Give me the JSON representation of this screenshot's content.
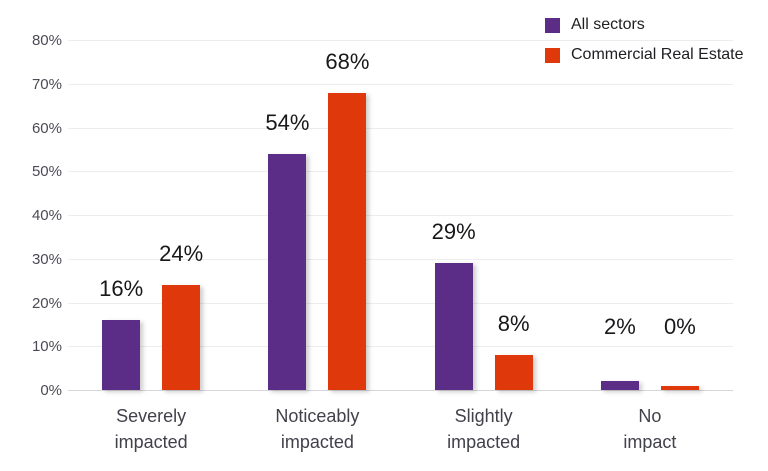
{
  "chart_data": {
    "type": "bar",
    "categories": [
      [
        "Severely",
        "impacted"
      ],
      [
        "Noticeably",
        "impacted"
      ],
      [
        "Slightly",
        "impacted"
      ],
      [
        "No",
        "impact"
      ]
    ],
    "series": [
      {
        "name": "All sectors",
        "color": "#5C2D87",
        "values": [
          16,
          54,
          29,
          2
        ]
      },
      {
        "name": "Commercial Real Estate",
        "color": "#DF390B",
        "values": [
          24,
          68,
          8,
          0
        ]
      }
    ],
    "data_labels": {
      "All sectors": [
        "16%",
        "54%",
        "29%",
        "2%"
      ],
      "Commercial Real Estate": [
        "24%",
        "68%",
        "8%",
        "0%"
      ]
    },
    "y_axis": {
      "min": 0,
      "max": 80,
      "step": 10,
      "tick_labels": [
        "0%",
        "10%",
        "20%",
        "30%",
        "40%",
        "50%",
        "60%",
        "70%",
        "80%"
      ]
    },
    "grid": true,
    "legend_position": "top-right",
    "background": "#ffffff",
    "gridline_color": "#ededf0",
    "baseline_color": "#d6d6da"
  }
}
